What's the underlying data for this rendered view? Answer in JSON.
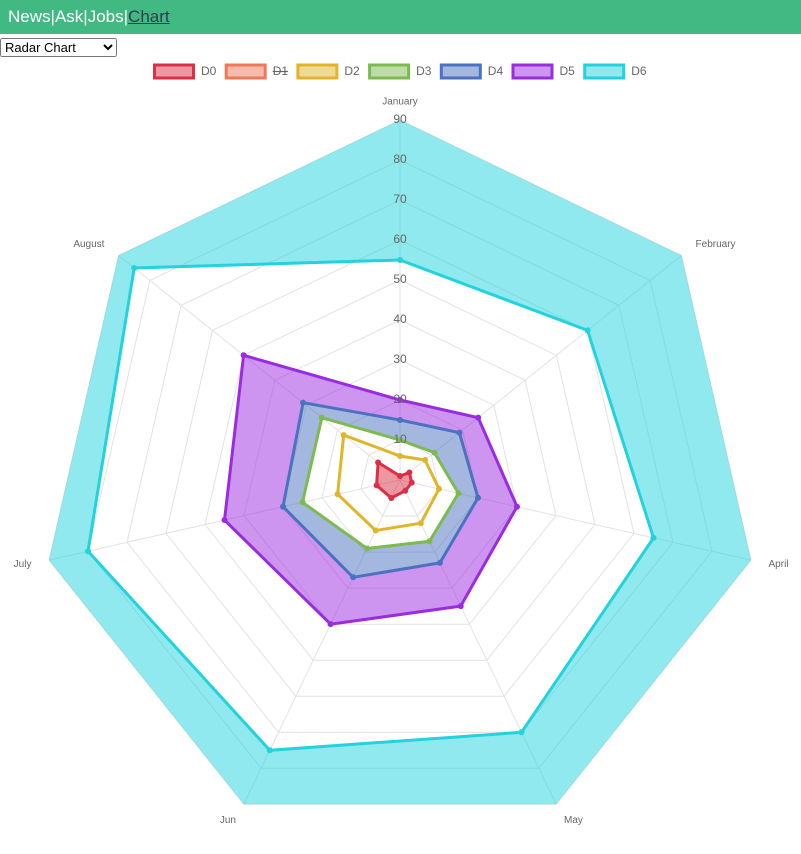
{
  "nav": {
    "items": [
      "News",
      "Ask",
      "Jobs",
      "Chart"
    ],
    "separator": "|"
  },
  "select": "Radar Chart",
  "chart_data": {
    "type": "radar",
    "categories": [
      "January",
      "February",
      "April",
      "May",
      "Jun",
      "July",
      "August"
    ],
    "ylim": [
      0,
      90
    ],
    "yticks": [
      10,
      20,
      30,
      40,
      50,
      60,
      70,
      80,
      90
    ],
    "grid": true,
    "legend": "top",
    "series": [
      {
        "name": "D0",
        "color": "#dc2f45",
        "fill": "origin",
        "values": [
          1,
          3,
          3,
          3,
          5,
          6,
          7
        ]
      },
      {
        "name": "D1",
        "color": "#f0785a",
        "hidden": true
      },
      {
        "name": "D2",
        "color": "#e0b52a",
        "fill": false,
        "values": [
          6,
          8,
          10,
          12,
          14,
          16,
          18
        ]
      },
      {
        "name": "D3",
        "color": "#7dba50",
        "fill": false,
        "values": [
          10,
          11,
          15,
          17,
          19,
          25,
          25
        ]
      },
      {
        "name": "D4",
        "color": "#4a72c0",
        "fill": "-1",
        "values": [
          15,
          19,
          20,
          23,
          27,
          30,
          31
        ]
      },
      {
        "name": "D5",
        "color": "#9b2be0",
        "fill": "-1",
        "values": [
          20,
          25,
          30,
          35,
          40,
          45,
          50
        ]
      },
      {
        "name": "D6",
        "color": "#22d3dd",
        "fill": "end",
        "values": [
          55,
          60,
          65,
          70,
          75,
          80,
          85
        ]
      }
    ]
  }
}
